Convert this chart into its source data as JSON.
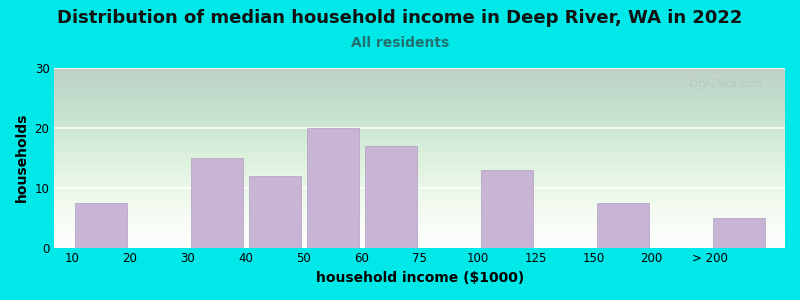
{
  "title": "Distribution of median household income in Deep River, WA in 2022",
  "subtitle": "All residents",
  "xlabel": "household income ($1000)",
  "ylabel": "households",
  "tick_labels": [
    "10",
    "20",
    "30",
    "40",
    "50",
    "60",
    "75",
    "100",
    "125",
    "150",
    "200",
    "> 200"
  ],
  "tick_positions": [
    0,
    1,
    2,
    3,
    4,
    5,
    6,
    7,
    8,
    9,
    10,
    11
  ],
  "bar_left_edges": [
    0,
    2,
    3,
    4,
    5,
    7,
    9,
    11
  ],
  "bar_right_edges": [
    1,
    3,
    4,
    5,
    6,
    8,
    10,
    12
  ],
  "bar_heights": [
    7.5,
    15,
    12,
    20,
    17,
    13,
    7.5,
    5
  ],
  "bar_color": "#c8b4d4",
  "bar_edgecolor": "#b09ec0",
  "ylim": [
    0,
    30
  ],
  "yticks": [
    0,
    10,
    20,
    30
  ],
  "bg_outer": "#00e8e8",
  "bg_plot": "#f0f8ee",
  "title_fontsize": 13,
  "subtitle_fontsize": 10,
  "subtitle_color": "#207070",
  "axis_label_fontsize": 10,
  "tick_fontsize": 8.5,
  "watermark": "City-Data.com",
  "watermark_color": "#b8c4b8"
}
